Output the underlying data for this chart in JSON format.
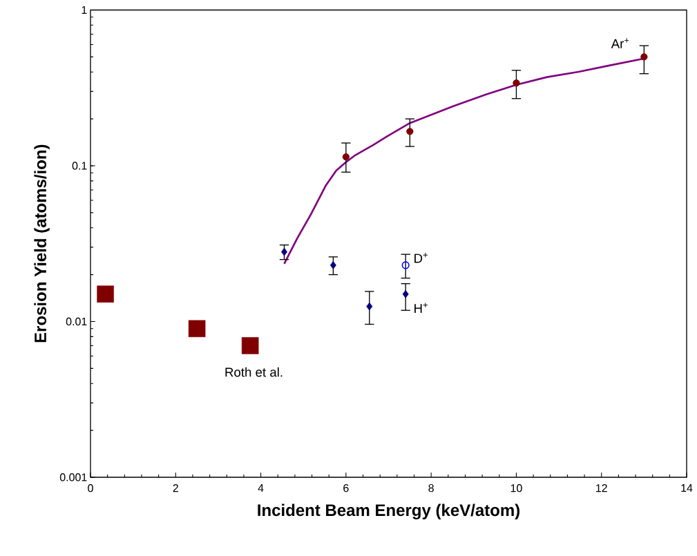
{
  "chart_data": {
    "type": "scatter",
    "xlabel": "Incident Beam Energy (keV/atom)",
    "ylabel": "Erosion Yield (atoms/ion)",
    "log": "y",
    "grid": false,
    "xlim": [
      0,
      14
    ],
    "xticks": [
      0,
      2,
      4,
      6,
      8,
      10,
      12,
      14
    ],
    "ylim": [
      0.001,
      1
    ],
    "yticks": [
      0.001,
      0.01,
      0.1,
      1
    ],
    "series": [
      {
        "type": "line",
        "color": "#800080",
        "line_style": "solid",
        "x": [
          4.55,
          4.85,
          5.18,
          5.53,
          5.77,
          5.99,
          6.2,
          6.64,
          6.96,
          7.5,
          8.53,
          9.29,
          10.0,
          10.72,
          11.46,
          12.16,
          12.98
        ],
        "values": [
          0.0235,
          0.034,
          0.049,
          0.075,
          0.093,
          0.105,
          0.116,
          0.136,
          0.154,
          0.188,
          0.242,
          0.287,
          0.331,
          0.371,
          0.401,
          0.439,
          0.487
        ]
      },
      {
        "name": "Ar$^{+}$",
        "marker": "circle",
        "color": "#800000",
        "x": [
          6,
          7.5,
          10,
          13
        ],
        "values": [
          0.114,
          0.166,
          0.34,
          0.5
        ],
        "errors": [
          [
            0.091,
            0.14
          ],
          [
            0.133,
            0.2
          ],
          [
            0.27,
            0.41
          ],
          [
            0.39,
            0.59
          ]
        ]
      },
      {
        "name": "H$^{+}$",
        "marker": "diamond",
        "color": "#000080",
        "x": [
          4.55,
          5.7,
          6.55,
          7.4
        ],
        "values": [
          0.028,
          0.023,
          0.0125,
          0.015
        ],
        "errors": [
          [
            0.025,
            0.031
          ],
          [
            0.02,
            0.026
          ],
          [
            0.0096,
            0.0156
          ],
          [
            0.0118,
            0.0175
          ]
        ]
      },
      {
        "name": "D$^{+}$",
        "marker": "circle",
        "color": "#0000ff",
        "x": [
          7.4
        ],
        "values": [
          0.023
        ],
        "errors": [
          [
            0.019,
            0.027
          ]
        ]
      },
      {
        "name": "Roth et al.",
        "marker": "square",
        "color": "#800000",
        "x": [
          0.35,
          2.5,
          3.75
        ],
        "values": [
          0.015,
          0.009,
          0.007
        ]
      }
    ]
  }
}
